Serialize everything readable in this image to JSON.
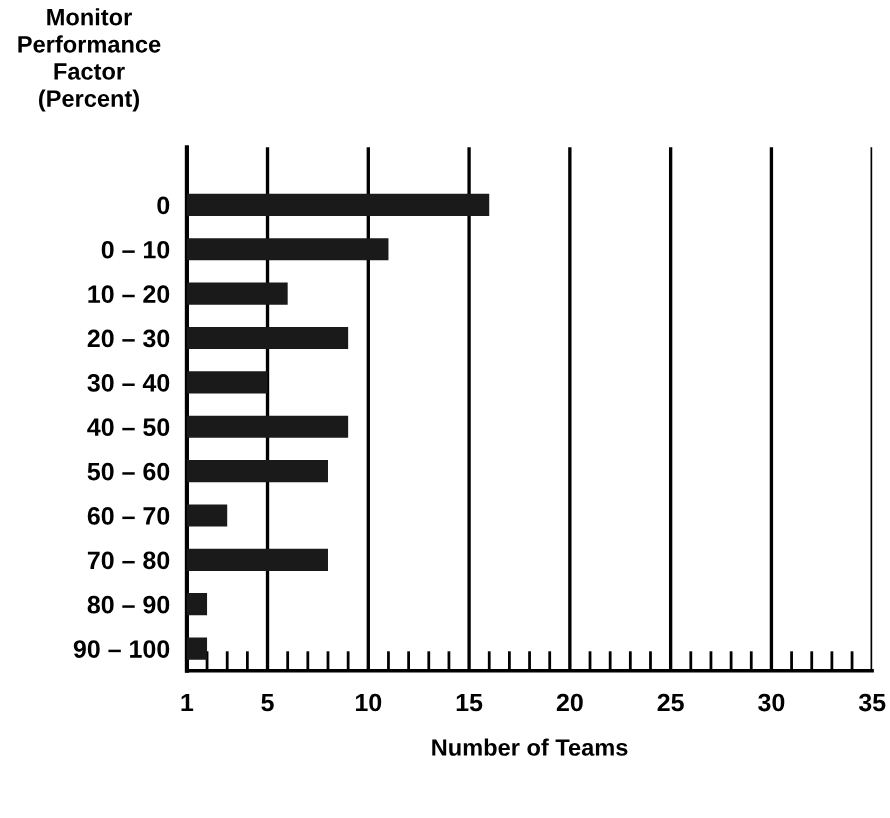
{
  "chart_data": {
    "type": "bar",
    "orientation": "horizontal",
    "ylabel": "Monitor\nPerformance\nFactor\n(Percent)",
    "xlabel": "Number of Teams",
    "categories": [
      "0",
      "0 – 10",
      "10 – 20",
      "20 – 30",
      "30 – 40",
      "40 – 50",
      "50 – 60",
      "60 – 70",
      "70 – 80",
      "80 – 90",
      "90 – 100"
    ],
    "values": [
      16,
      11,
      6,
      9,
      5,
      9,
      8,
      3,
      8,
      2,
      2
    ],
    "color": "#1a1a1a",
    "xlim": [
      1,
      35
    ],
    "xticks": [
      1,
      {
        "value": 2,
        "label": null
      },
      {
        "value": 3,
        "label": null
      },
      {
        "value": 4,
        "label": null
      },
      5,
      {
        "value": 6,
        "label": null
      },
      {
        "value": 7,
        "label": null
      },
      {
        "value": 8,
        "label": null
      },
      {
        "value": 9,
        "label": null
      },
      10,
      {
        "value": 11,
        "label": null
      },
      {
        "value": 12,
        "label": null
      },
      {
        "value": 13,
        "label": null
      },
      {
        "value": 14,
        "label": null
      },
      15,
      {
        "value": 16,
        "label": null
      },
      {
        "value": 17,
        "label": null
      },
      {
        "value": 18,
        "label": null
      },
      {
        "value": 19,
        "label": null
      },
      20,
      {
        "value": 21,
        "label": null
      },
      {
        "value": 22,
        "label": null
      },
      {
        "value": 23,
        "label": null
      },
      {
        "value": 24,
        "label": null
      },
      25,
      {
        "value": 26,
        "label": null
      },
      {
        "value": 27,
        "label": null
      },
      {
        "value": 28,
        "label": null
      },
      {
        "value": 29,
        "label": null
      },
      30,
      {
        "value": 31,
        "label": null
      },
      {
        "value": 32,
        "label": null
      },
      {
        "value": 33,
        "label": null
      },
      {
        "value": 34,
        "label": null
      },
      35
    ],
    "grid": "x"
  }
}
